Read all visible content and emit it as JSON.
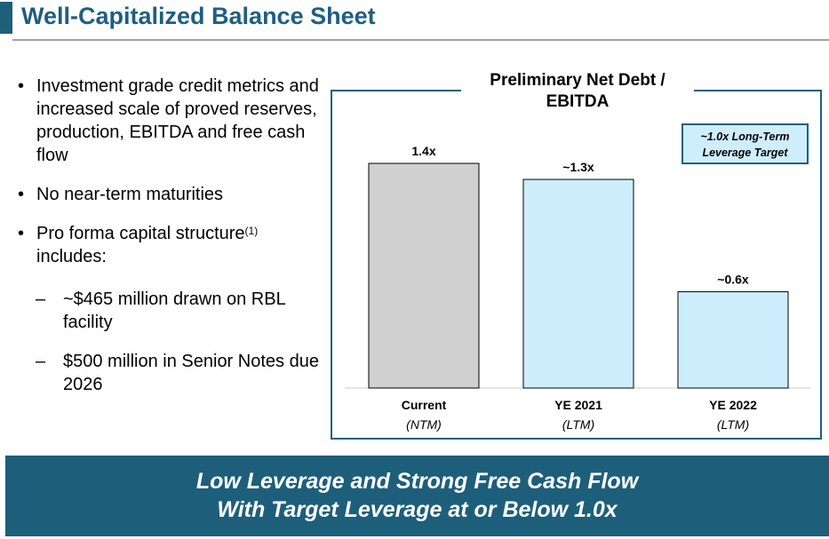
{
  "header": {
    "title": "Well-Capitalized Balance Sheet"
  },
  "bullets": {
    "b1": "Investment grade credit metrics and increased scale of proved reserves, production, EBITDA and free cash flow",
    "b2": "No near-term maturities",
    "b3": "Pro forma capital structure",
    "b3_sup": "(1)",
    "b3_tail": "includes:",
    "s1": "~$465 million drawn on RBL facility",
    "s2": "$500 million in Senior Notes due 2026",
    "bullet_glyph": "•",
    "dash_glyph": "–"
  },
  "chart_data": {
    "type": "bar",
    "title": "Preliminary Net Debt / EBITDA",
    "categories": [
      "Current",
      "YE 2021",
      "YE 2022"
    ],
    "sublabels": [
      "(NTM)",
      "(LTM)",
      "(LTM)"
    ],
    "values": [
      1.4,
      1.3,
      0.6
    ],
    "value_labels": [
      "1.4x",
      "~1.3x",
      "~0.6x"
    ],
    "bar_colors": [
      "#d0d0d0",
      "#cceefc",
      "#cceefc"
    ],
    "ylim": [
      0,
      1.4
    ],
    "grid": false,
    "annotation": "~1.0x Long-Term Leverage Target"
  },
  "banner": {
    "line1": "Low Leverage and Strong Free Cash Flow",
    "line2": "With Target Leverage at or Below 1.0x"
  },
  "colors": {
    "brand": "#1e5f80",
    "banner_bg": "#1d5f7a"
  }
}
